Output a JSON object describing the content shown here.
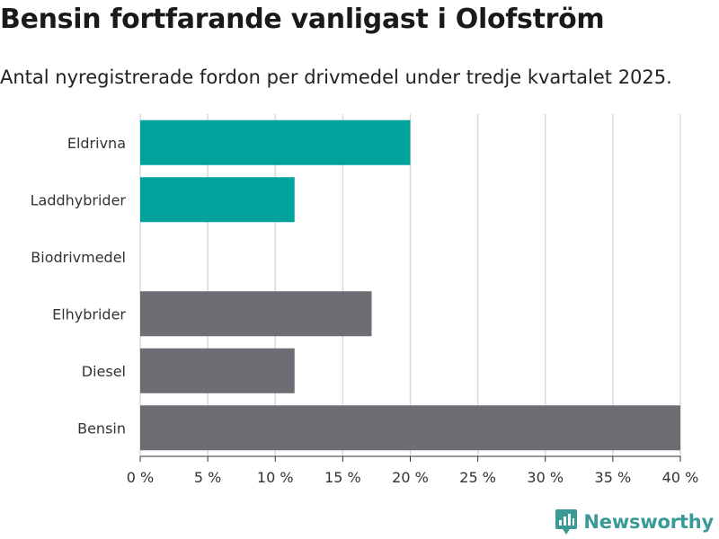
{
  "chart_data": {
    "type": "bar",
    "orientation": "horizontal",
    "title": "Bensin fortfarande vanligast i Olofström",
    "subtitle": "Antal nyregistrerade fordon per drivmedel under tredje kvartalet 2025.",
    "categories": [
      "Eldrivna",
      "Laddhybrider",
      "Biodrivmedel",
      "Elhybrider",
      "Diesel",
      "Bensin"
    ],
    "values": [
      20,
      11.43,
      0,
      17.14,
      11.43,
      40
    ],
    "unit": "%",
    "xlim": [
      0,
      40
    ],
    "ticks": [
      "0 %",
      "5 %",
      "10 %",
      "15 %",
      "20 %",
      "25 %",
      "30 %",
      "35 %",
      "40 %"
    ],
    "colors": [
      "#00a39b",
      "#00a39b",
      "#00a39b",
      "#6e6d73",
      "#6e6d73",
      "#6e6d73"
    ],
    "grid": true,
    "xlabel": "",
    "ylabel": ""
  },
  "brand": {
    "name": "Newsworthy",
    "color": "#3a9a98"
  },
  "colors": {
    "grid": "#d9d9d9",
    "axis": "#333333"
  }
}
